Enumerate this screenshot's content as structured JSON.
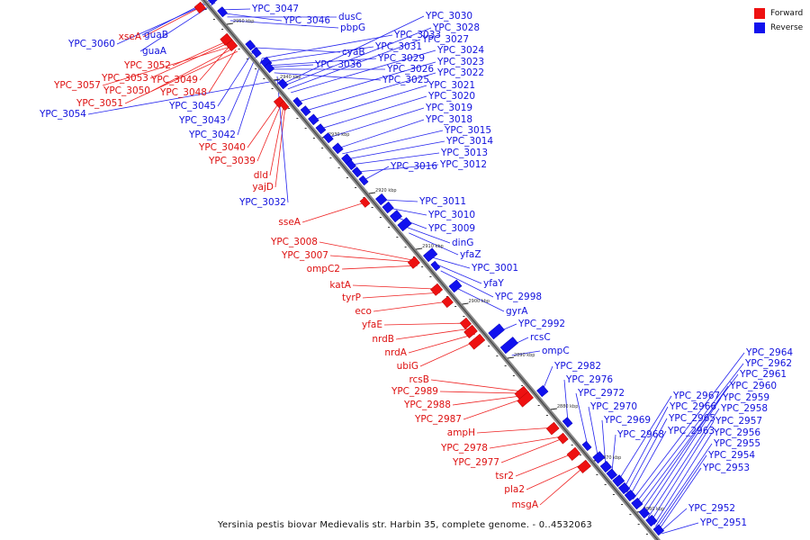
{
  "caption": "Yersinia pestis biovar Medievalis str. Harbin 35, complete genome. - 0..4532063",
  "legend": [
    {
      "label": "Forward",
      "color": "#ee1111"
    },
    {
      "label": "Reverse",
      "color": "#1111ee"
    }
  ],
  "ticks": [
    "2950 kbp",
    "2940 kbp",
    "2930 kbp",
    "2920 kbp",
    "2910 kbp",
    "2900 kbp",
    "2890 kbp",
    "2880 kbp",
    "2870 kbp",
    "2860 kbp"
  ],
  "forward_labels": [
    "xseA",
    "YPC_3052",
    "YPC_3053",
    "YPC_3049",
    "YPC_3057",
    "YPC_3050",
    "YPC_3048",
    "YPC_3051",
    "YPC_3040",
    "YPC_3039",
    "dld",
    "yajD",
    "sseA",
    "YPC_3008",
    "YPC_3007",
    "ompC2",
    "katA",
    "tyrP",
    "eco",
    "yfaE",
    "nrdB",
    "nrdA",
    "ubiG",
    "rcsB",
    "YPC_2989",
    "YPC_2988",
    "YPC_2987",
    "ampH",
    "YPC_2978",
    "YPC_2977",
    "tsr2",
    "pla2",
    "msgA"
  ],
  "reverse_labels": [
    "guaB",
    "YPC_3060",
    "guaA",
    "YPC_3045",
    "YPC_3043",
    "YPC_3042",
    "YPC_3032",
    "YPC_3047",
    "YPC_3046",
    "dusC",
    "pbpG",
    "cyaB",
    "YPC_3036",
    "YPC_3033",
    "YPC_3031",
    "YPC_3029",
    "YPC_3026",
    "YPC_3025",
    "YPC_3054",
    "YPC_3030",
    "YPC_3028",
    "YPC_3027",
    "YPC_3024",
    "YPC_3023",
    "YPC_3022",
    "YPC_3021",
    "YPC_3020",
    "YPC_3019",
    "YPC_3018",
    "YPC_3015",
    "YPC_3014",
    "YPC_3013",
    "YPC_3012",
    "YPC_3016",
    "YPC_3011",
    "YPC_3010",
    "YPC_3009",
    "dinG",
    "yfaZ",
    "YPC_3001",
    "yfaY",
    "YPC_2998",
    "gyrA",
    "YPC_2992",
    "rcsC",
    "ompC",
    "YPC_2982",
    "YPC_2976",
    "YPC_2972",
    "YPC_2970",
    "YPC_2969",
    "YPC_2968",
    "YPC_2967",
    "YPC_2966",
    "YPC_2965",
    "YPC_2963",
    "YPC_2964",
    "YPC_2962",
    "YPC_2961",
    "YPC_2960",
    "YPC_2959",
    "YPC_2958",
    "YPC_2957",
    "YPC_2956",
    "YPC_2955",
    "YPC_2954",
    "YPC_2953",
    "YPC_2952",
    "YPC_2951"
  ]
}
